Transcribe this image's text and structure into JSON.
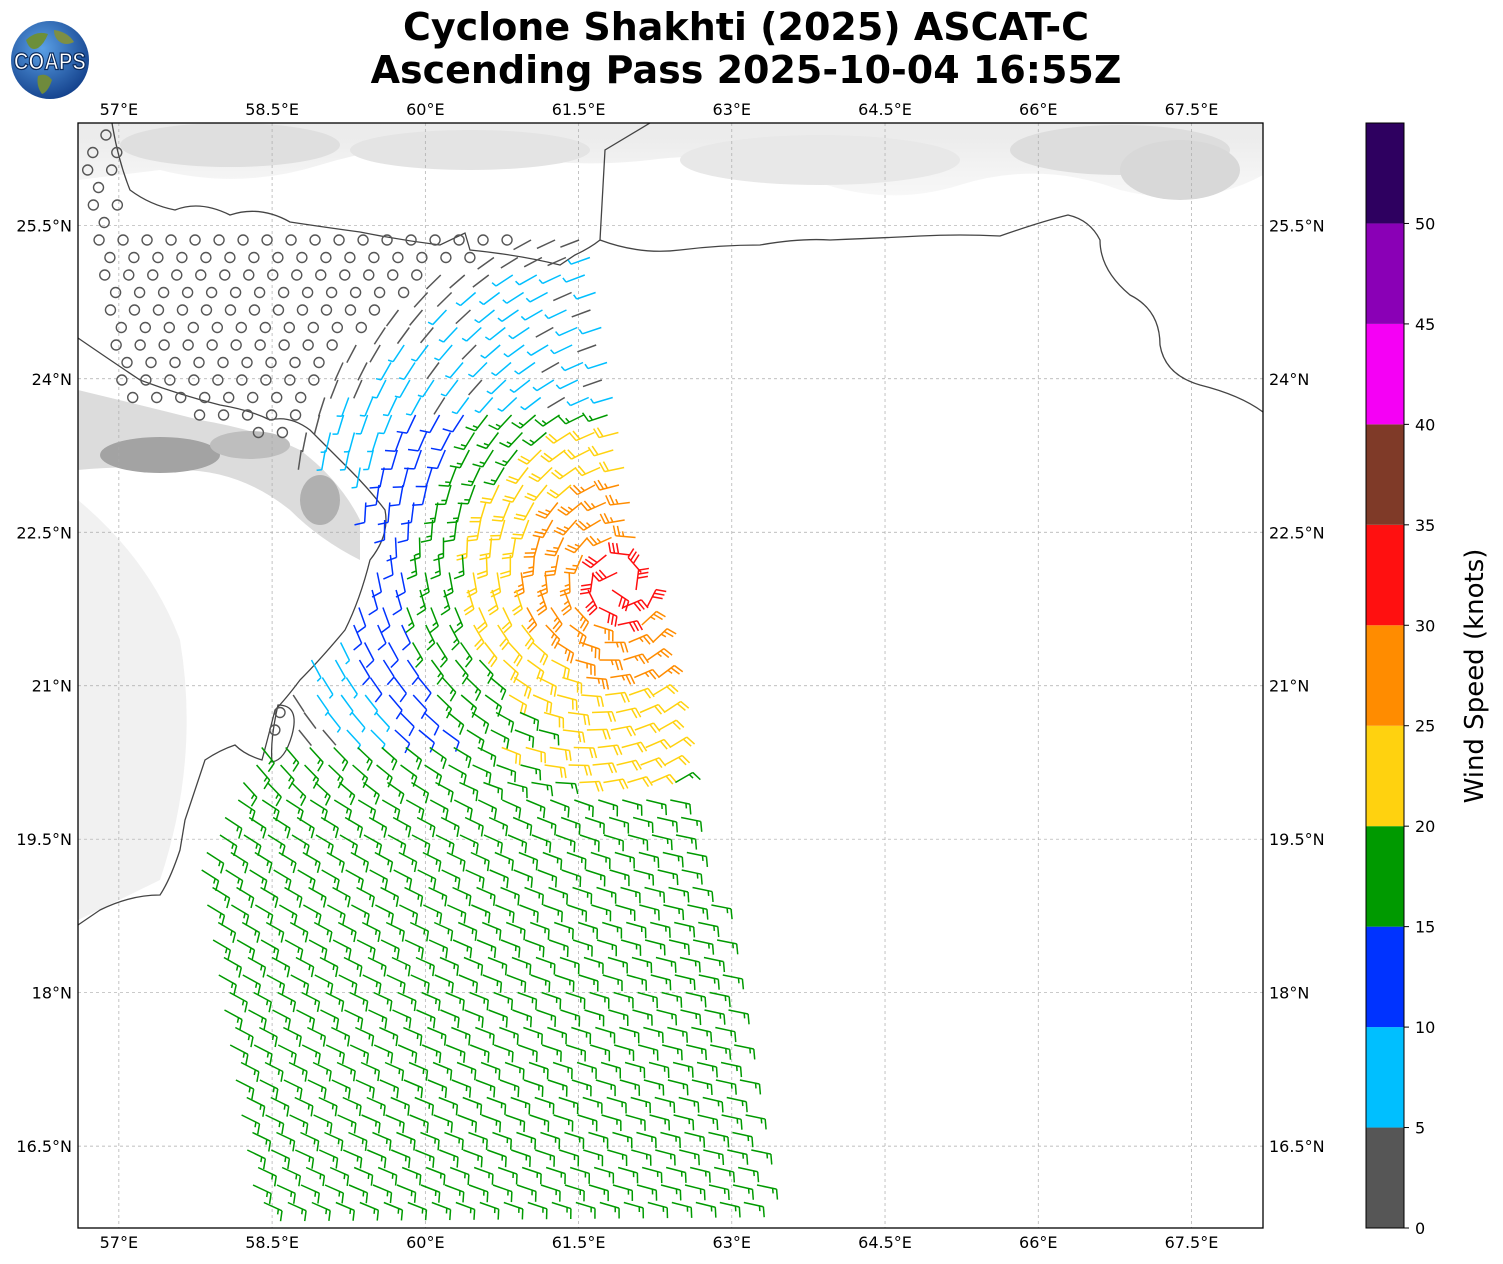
{
  "title": {
    "line1": "Cyclone Shakhti (2025) ASCAT-C",
    "line2": "Ascending Pass 2025-10-04 16:55Z"
  },
  "logo": {
    "text": "COAPS",
    "icon": "globe-logo-icon"
  },
  "map": {
    "lon_range": [
      56.6,
      68.2
    ],
    "lat_range": [
      15.7,
      26.5
    ],
    "lon_ticks": [
      "57°E",
      "58.5°E",
      "60°E",
      "61.5°E",
      "63°E",
      "64.5°E",
      "66°E",
      "67.5°E"
    ],
    "lat_ticks": [
      "25.5°N",
      "24°N",
      "22.5°N",
      "21°N",
      "19.5°N",
      "18°N",
      "16.5°N"
    ],
    "lon_tick_values": [
      57,
      58.5,
      60,
      61.5,
      63,
      64.5,
      66,
      67.5
    ],
    "lat_tick_values": [
      25.5,
      24,
      22.5,
      21,
      19.5,
      18,
      16.5
    ],
    "grid": true,
    "background": "grayscale infrared cloud imagery",
    "cyclone_center": {
      "lon": 61.9,
      "lat": 22.0
    },
    "swath_colors_by_speed": "see colorbar"
  },
  "colorbar": {
    "label": "Wind Speed (knots)",
    "ticks": [
      "0",
      "5",
      "10",
      "15",
      "20",
      "25",
      "30",
      "35",
      "40",
      "45",
      "50"
    ],
    "bins": [
      {
        "min": 0,
        "max": 5,
        "color": "#565656"
      },
      {
        "min": 5,
        "max": 10,
        "color": "#00bfff"
      },
      {
        "min": 10,
        "max": 15,
        "color": "#0033ff"
      },
      {
        "min": 15,
        "max": 20,
        "color": "#009a00"
      },
      {
        "min": 20,
        "max": 25,
        "color": "#ffd20f"
      },
      {
        "min": 25,
        "max": 30,
        "color": "#ff8c00"
      },
      {
        "min": 30,
        "max": 35,
        "color": "#ff1010"
      },
      {
        "min": 35,
        "max": 40,
        "color": "#7f3a28"
      },
      {
        "min": 40,
        "max": 45,
        "color": "#f500f5"
      },
      {
        "min": 45,
        "max": 50,
        "color": "#8a00b6"
      },
      {
        "min": 50,
        "max": 55,
        "color": "#2e0060"
      }
    ]
  }
}
